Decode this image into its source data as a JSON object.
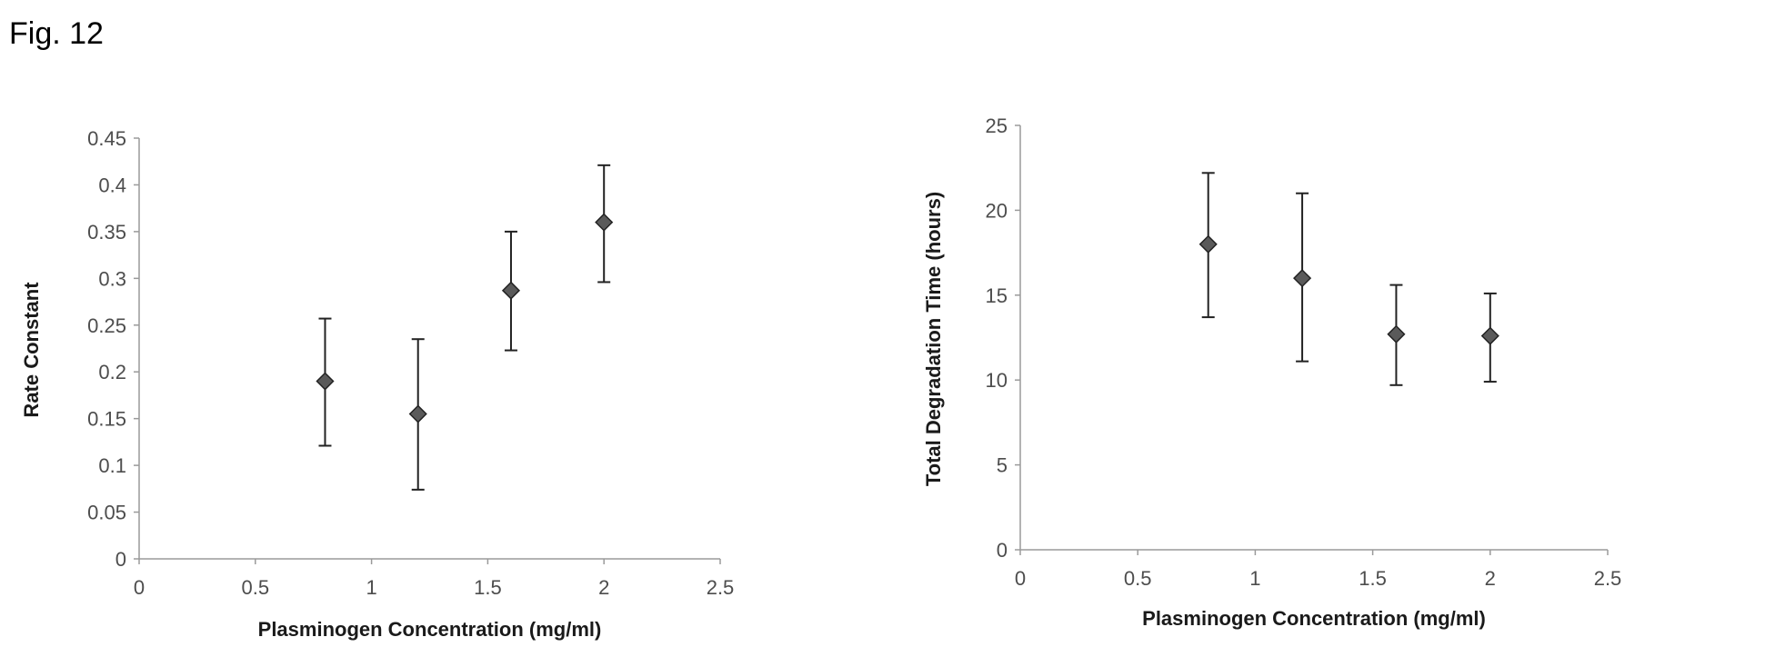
{
  "figure_label": "Fig. 12",
  "chart_data": [
    {
      "type": "scatter",
      "xlabel": "Plasminogen Concentration (mg/ml)",
      "ylabel": "Rate Constant",
      "xlim": [
        0,
        2.5
      ],
      "ylim": [
        0,
        0.45
      ],
      "x_ticks": [
        "0",
        "0.5",
        "1",
        "1.5",
        "2",
        "2.5"
      ],
      "y_ticks": [
        "0",
        "0.05",
        "0.1",
        "0.15",
        "0.2",
        "0.25",
        "0.3",
        "0.35",
        "0.4",
        "0.45"
      ],
      "grid": false,
      "marker": "diamond",
      "points": [
        {
          "x": 0.8,
          "y": 0.19,
          "low": 0.121,
          "high": 0.257
        },
        {
          "x": 1.2,
          "y": 0.155,
          "low": 0.074,
          "high": 0.235
        },
        {
          "x": 1.6,
          "y": 0.287,
          "low": 0.223,
          "high": 0.35
        },
        {
          "x": 2.0,
          "y": 0.36,
          "low": 0.296,
          "high": 0.421
        }
      ]
    },
    {
      "type": "scatter",
      "xlabel": "Plasminogen Concentration (mg/ml)",
      "ylabel": "Total Degradation Time (hours)",
      "xlim": [
        0,
        2.5
      ],
      "ylim": [
        0,
        25
      ],
      "x_ticks": [
        "0",
        "0.5",
        "1",
        "1.5",
        "2",
        "2.5"
      ],
      "y_ticks": [
        "0",
        "5",
        "10",
        "15",
        "20",
        "25"
      ],
      "grid": false,
      "marker": "diamond",
      "points": [
        {
          "x": 0.8,
          "y": 18.0,
          "low": 13.7,
          "high": 22.2
        },
        {
          "x": 1.2,
          "y": 16.0,
          "low": 11.1,
          "high": 21.0
        },
        {
          "x": 1.6,
          "y": 12.7,
          "low": 9.7,
          "high": 15.6
        },
        {
          "x": 2.0,
          "y": 12.6,
          "low": 9.9,
          "high": 15.1
        }
      ]
    }
  ]
}
